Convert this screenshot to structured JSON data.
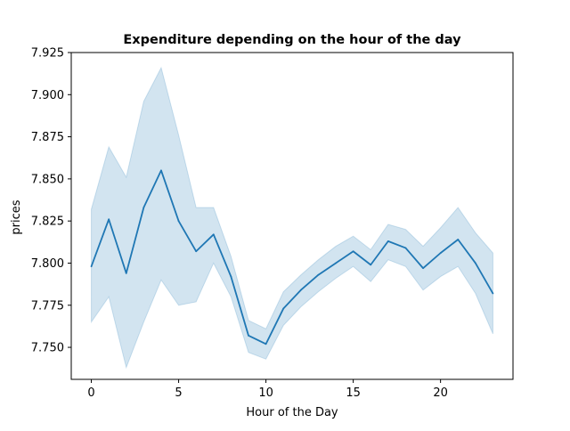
{
  "chart_data": {
    "type": "line",
    "title": "Expenditure depending on the hour of the day",
    "xlabel": "Hour of the Day",
    "ylabel": "prices",
    "xlim": [
      -1.15,
      24.15
    ],
    "ylim": [
      7.731,
      7.925
    ],
    "xticks": [
      0,
      5,
      10,
      15,
      20
    ],
    "yticks": [
      7.75,
      7.775,
      7.8,
      7.825,
      7.85,
      7.875,
      7.9,
      7.925
    ],
    "grid": false,
    "legend": "none",
    "series": [
      {
        "x": [
          0,
          1,
          2,
          3,
          4,
          5,
          6,
          7,
          8,
          9,
          10,
          11,
          12,
          13,
          14,
          15,
          16,
          17,
          18,
          19,
          20,
          21,
          22,
          23
        ],
        "values": [
          7.798,
          7.826,
          7.794,
          7.833,
          7.855,
          7.825,
          7.807,
          7.817,
          7.792,
          7.757,
          7.752,
          7.773,
          7.784,
          7.793,
          7.8,
          7.807,
          7.799,
          7.813,
          7.809,
          7.797,
          7.806,
          7.814,
          7.8,
          7.782
        ],
        "ci_lower": [
          7.765,
          7.78,
          7.738,
          7.765,
          7.79,
          7.775,
          7.777,
          7.8,
          7.78,
          7.747,
          7.743,
          7.763,
          7.774,
          7.783,
          7.791,
          7.798,
          7.789,
          7.802,
          7.798,
          7.784,
          7.792,
          7.798,
          7.782,
          7.758
        ],
        "ci_upper": [
          7.832,
          7.869,
          7.851,
          7.896,
          7.916,
          7.876,
          7.833,
          7.833,
          7.804,
          7.766,
          7.761,
          7.783,
          7.793,
          7.802,
          7.81,
          7.816,
          7.808,
          7.823,
          7.82,
          7.81,
          7.821,
          7.833,
          7.818,
          7.806
        ]
      }
    ],
    "colors": {
      "line": "#1f77b4",
      "band": "#1f77b4",
      "axes": "#000000"
    }
  }
}
